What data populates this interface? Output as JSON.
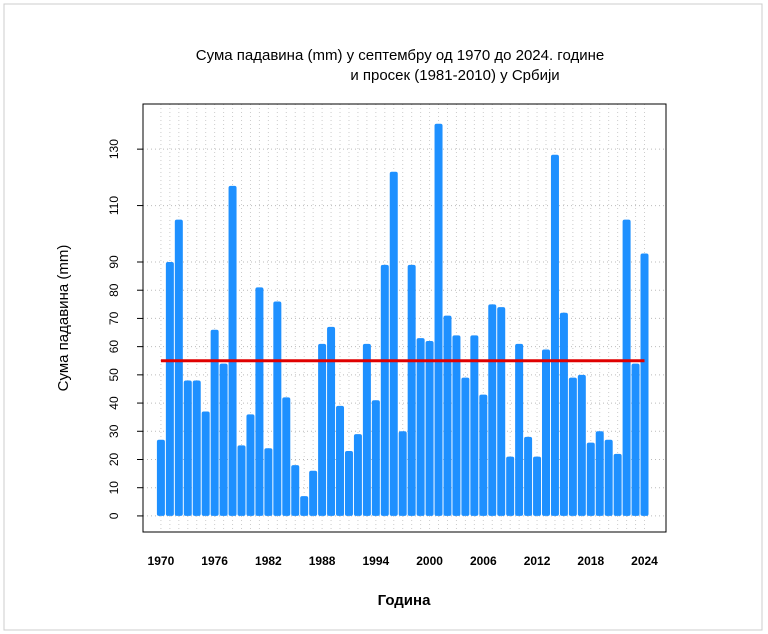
{
  "chart_data": {
    "type": "bar",
    "title": [
      "Сума падавина (mm)  у септембру од 1970 до 2024. године",
      "и просек (1981-2010) у Србији"
    ],
    "x_label": "Година",
    "y_label": "Сума падавина (mm)",
    "x": [
      1970,
      1971,
      1972,
      1973,
      1974,
      1975,
      1976,
      1977,
      1978,
      1979,
      1980,
      1981,
      1982,
      1983,
      1984,
      1985,
      1986,
      1987,
      1988,
      1989,
      1990,
      1991,
      1992,
      1993,
      1994,
      1995,
      1996,
      1997,
      1998,
      1999,
      2000,
      2001,
      2002,
      2003,
      2004,
      2005,
      2006,
      2007,
      2008,
      2009,
      2010,
      2011,
      2012,
      2013,
      2014,
      2015,
      2016,
      2017,
      2018,
      2019,
      2020,
      2021,
      2022,
      2023,
      2024
    ],
    "values": [
      27,
      90,
      105,
      48,
      48,
      37,
      66,
      54,
      117,
      25,
      36,
      81,
      24,
      76,
      42,
      18,
      7,
      16,
      61,
      67,
      39,
      23,
      29,
      61,
      41,
      89,
      122,
      30,
      89,
      63,
      62,
      139,
      71,
      64,
      49,
      64,
      43,
      75,
      74,
      21,
      61,
      28,
      21,
      59,
      128,
      72,
      49,
      50,
      26,
      30,
      27,
      22,
      105,
      54,
      93
    ],
    "average": 55,
    "color": "#1e90ff",
    "average_color": "#e00000",
    "xlim": [
      1968,
      2026.4
    ],
    "ylim": [
      -5.7,
      146
    ],
    "xticks": [
      1970,
      1976,
      1982,
      1988,
      1994,
      2000,
      2006,
      2012,
      2018,
      2024
    ],
    "yticks": [
      0,
      10,
      20,
      30,
      40,
      50,
      60,
      70,
      80,
      90,
      110,
      130
    ],
    "grid": true
  }
}
